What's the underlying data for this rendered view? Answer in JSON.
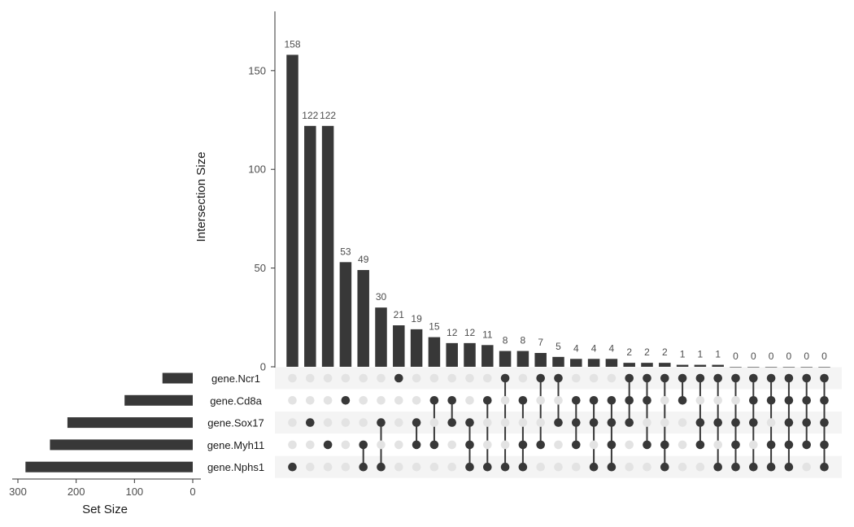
{
  "chart_data": {
    "type": "bar",
    "title": "",
    "ylabel": "Intersection Size",
    "xlabel": "Set Size",
    "ylim": [
      0,
      180
    ],
    "yticks": [
      0,
      50,
      100,
      150
    ],
    "set_size_ticks": [
      300,
      200,
      100,
      0
    ],
    "set_size_xlim": [
      0,
      300
    ],
    "sets": [
      "gene.Ncr1",
      "gene.Cd8a",
      "gene.Sox17",
      "gene.Myh11",
      "gene.Nphs1"
    ],
    "set_sizes": [
      52,
      117,
      215,
      245,
      287
    ],
    "intersections": [
      {
        "sets": [
          "gene.Nphs1"
        ],
        "value": 158
      },
      {
        "sets": [
          "gene.Sox17"
        ],
        "value": 122
      },
      {
        "sets": [
          "gene.Myh11"
        ],
        "value": 122
      },
      {
        "sets": [
          "gene.Cd8a"
        ],
        "value": 53
      },
      {
        "sets": [
          "gene.Myh11",
          "gene.Nphs1"
        ],
        "value": 49
      },
      {
        "sets": [
          "gene.Sox17",
          "gene.Nphs1"
        ],
        "value": 30
      },
      {
        "sets": [
          "gene.Ncr1"
        ],
        "value": 21
      },
      {
        "sets": [
          "gene.Sox17",
          "gene.Myh11"
        ],
        "value": 19
      },
      {
        "sets": [
          "gene.Cd8a",
          "gene.Myh11"
        ],
        "value": 15
      },
      {
        "sets": [
          "gene.Cd8a",
          "gene.Sox17"
        ],
        "value": 12
      },
      {
        "sets": [
          "gene.Sox17",
          "gene.Myh11",
          "gene.Nphs1"
        ],
        "value": 12
      },
      {
        "sets": [
          "gene.Cd8a",
          "gene.Nphs1"
        ],
        "value": 11
      },
      {
        "sets": [
          "gene.Ncr1",
          "gene.Nphs1"
        ],
        "value": 8
      },
      {
        "sets": [
          "gene.Cd8a",
          "gene.Myh11",
          "gene.Nphs1"
        ],
        "value": 8
      },
      {
        "sets": [
          "gene.Ncr1",
          "gene.Myh11"
        ],
        "value": 7
      },
      {
        "sets": [
          "gene.Ncr1",
          "gene.Sox17"
        ],
        "value": 5
      },
      {
        "sets": [
          "gene.Cd8a",
          "gene.Sox17",
          "gene.Myh11"
        ],
        "value": 4
      },
      {
        "sets": [
          "gene.Cd8a",
          "gene.Sox17",
          "gene.Nphs1"
        ],
        "value": 4
      },
      {
        "sets": [
          "gene.Cd8a",
          "gene.Sox17",
          "gene.Myh11",
          "gene.Nphs1"
        ],
        "value": 4
      },
      {
        "sets": [
          "gene.Ncr1",
          "gene.Cd8a",
          "gene.Sox17"
        ],
        "value": 2
      },
      {
        "sets": [
          "gene.Ncr1",
          "gene.Cd8a",
          "gene.Myh11"
        ],
        "value": 2
      },
      {
        "sets": [
          "gene.Ncr1",
          "gene.Myh11",
          "gene.Nphs1"
        ],
        "value": 2
      },
      {
        "sets": [
          "gene.Ncr1",
          "gene.Cd8a"
        ],
        "value": 1
      },
      {
        "sets": [
          "gene.Ncr1",
          "gene.Sox17",
          "gene.Myh11"
        ],
        "value": 1
      },
      {
        "sets": [
          "gene.Ncr1",
          "gene.Sox17",
          "gene.Nphs1"
        ],
        "value": 1
      },
      {
        "sets": [
          "gene.Ncr1",
          "gene.Sox17",
          "gene.Myh11",
          "gene.Nphs1"
        ],
        "value": 0
      },
      {
        "sets": [
          "gene.Ncr1",
          "gene.Cd8a",
          "gene.Sox17",
          "gene.Nphs1"
        ],
        "value": 0
      },
      {
        "sets": [
          "gene.Ncr1",
          "gene.Cd8a",
          "gene.Myh11",
          "gene.Nphs1"
        ],
        "value": 0
      },
      {
        "sets": [
          "gene.Ncr1",
          "gene.Cd8a",
          "gene.Sox17",
          "gene.Myh11",
          "gene.Nphs1"
        ],
        "value": 0
      },
      {
        "sets": [
          "gene.Ncr1",
          "gene.Cd8a",
          "gene.Sox17",
          "gene.Myh11"
        ],
        "value": 0
      },
      {
        "sets": [
          "gene.Ncr1",
          "gene.Cd8a",
          "gene.Sox17",
          "gene.Myh11",
          "gene.Nphs1"
        ],
        "value": 0
      }
    ]
  },
  "colors": {
    "bar": "#383838",
    "dot_active": "#383838",
    "dot_inactive": "#e3e3e3",
    "stripe": "#f4f4f4",
    "axis": "#333333"
  }
}
